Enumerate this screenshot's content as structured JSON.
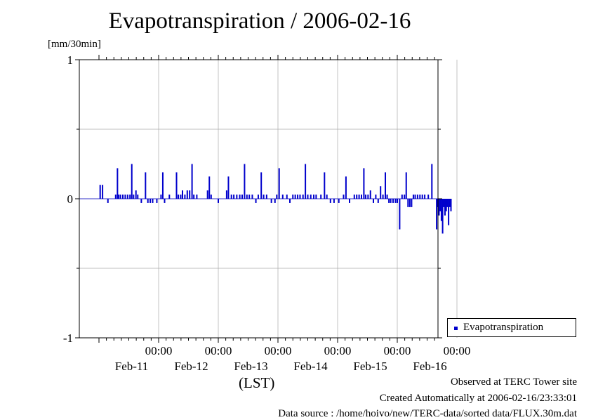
{
  "header": {
    "title": "Evapotranspiration / 2006-02-16",
    "unit": "[mm/30min]"
  },
  "legend": {
    "label": "Evapotranspiration",
    "color": "#0000cc"
  },
  "xaxis_label": "(LST)",
  "footer": {
    "observed": "Observed at TERC Tower site",
    "created": "Created Automatically at 2006-02-16/23:33:01",
    "source": "Data source : /home/hoivo/new/TERC-data/sorted  data/FLUX.30m.dat"
  },
  "chart_data": {
    "type": "bar",
    "ylim": [
      -1,
      1
    ],
    "yticks": [
      "1",
      "0",
      "-1"
    ],
    "xlim_days": [
      0,
      6.0
    ],
    "day_ticks": [
      {
        "time": "00:00",
        "date": "Feb-11"
      },
      {
        "time": "00:00",
        "date": "Feb-12"
      },
      {
        "time": "00:00",
        "date": "Feb-13"
      },
      {
        "time": "00:00",
        "date": "Feb-14"
      },
      {
        "time": "00:00",
        "date": "Feb-15"
      },
      {
        "time": "00:00",
        "date": "Feb-16"
      }
    ],
    "grid": true,
    "legend_position": "right",
    "series": [
      {
        "name": "Evapotranspiration",
        "color": "#0000cc",
        "points": [
          [
            0.02,
            0.1
          ],
          [
            0.06,
            0.1
          ],
          [
            0.15,
            -0.03
          ],
          [
            0.28,
            0.03
          ],
          [
            0.31,
            0.22
          ],
          [
            0.33,
            0.03
          ],
          [
            0.36,
            0.03
          ],
          [
            0.4,
            0.03
          ],
          [
            0.44,
            0.03
          ],
          [
            0.48,
            0.03
          ],
          [
            0.52,
            0.03
          ],
          [
            0.55,
            0.25
          ],
          [
            0.58,
            0.03
          ],
          [
            0.62,
            0.06
          ],
          [
            0.65,
            0.03
          ],
          [
            0.71,
            -0.03
          ],
          [
            0.78,
            0.19
          ],
          [
            0.82,
            -0.03
          ],
          [
            0.86,
            -0.03
          ],
          [
            0.9,
            -0.03
          ],
          [
            0.97,
            -0.03
          ],
          [
            1.04,
            0.03
          ],
          [
            1.07,
            0.19
          ],
          [
            1.1,
            -0.03
          ],
          [
            1.18,
            0.03
          ],
          [
            1.3,
            0.19
          ],
          [
            1.33,
            0.03
          ],
          [
            1.37,
            0.03
          ],
          [
            1.4,
            0.06
          ],
          [
            1.44,
            0.03
          ],
          [
            1.48,
            0.06
          ],
          [
            1.52,
            0.06
          ],
          [
            1.56,
            0.25
          ],
          [
            1.59,
            0.03
          ],
          [
            1.64,
            0.03
          ],
          [
            1.82,
            0.06
          ],
          [
            1.85,
            0.16
          ],
          [
            1.88,
            0.03
          ],
          [
            2.0,
            -0.03
          ],
          [
            2.14,
            0.06
          ],
          [
            2.17,
            0.16
          ],
          [
            2.22,
            0.03
          ],
          [
            2.26,
            0.03
          ],
          [
            2.31,
            0.03
          ],
          [
            2.36,
            0.03
          ],
          [
            2.4,
            0.03
          ],
          [
            2.44,
            0.25
          ],
          [
            2.48,
            0.03
          ],
          [
            2.52,
            0.03
          ],
          [
            2.57,
            0.03
          ],
          [
            2.63,
            -0.03
          ],
          [
            2.67,
            0.03
          ],
          [
            2.72,
            0.19
          ],
          [
            2.76,
            0.03
          ],
          [
            2.81,
            0.03
          ],
          [
            2.89,
            -0.03
          ],
          [
            2.95,
            -0.03
          ],
          [
            2.98,
            0.03
          ],
          [
            3.02,
            0.22
          ],
          [
            3.08,
            0.03
          ],
          [
            3.15,
            0.03
          ],
          [
            3.2,
            -0.03
          ],
          [
            3.25,
            0.03
          ],
          [
            3.29,
            0.03
          ],
          [
            3.33,
            0.03
          ],
          [
            3.37,
            0.03
          ],
          [
            3.42,
            0.03
          ],
          [
            3.46,
            0.25
          ],
          [
            3.5,
            0.03
          ],
          [
            3.55,
            0.03
          ],
          [
            3.6,
            0.03
          ],
          [
            3.64,
            0.03
          ],
          [
            3.72,
            0.03
          ],
          [
            3.78,
            0.19
          ],
          [
            3.82,
            0.03
          ],
          [
            3.88,
            -0.03
          ],
          [
            3.94,
            -0.03
          ],
          [
            4.02,
            -0.03
          ],
          [
            4.1,
            0.03
          ],
          [
            4.14,
            0.16
          ],
          [
            4.2,
            -0.03
          ],
          [
            4.28,
            0.03
          ],
          [
            4.32,
            0.03
          ],
          [
            4.36,
            0.03
          ],
          [
            4.4,
            0.03
          ],
          [
            4.44,
            0.22
          ],
          [
            4.47,
            0.03
          ],
          [
            4.51,
            0.03
          ],
          [
            4.55,
            0.06
          ],
          [
            4.6,
            -0.03
          ],
          [
            4.64,
            0.03
          ],
          [
            4.68,
            -0.03
          ],
          [
            4.72,
            0.09
          ],
          [
            4.76,
            0.03
          ],
          [
            4.8,
            0.19
          ],
          [
            4.83,
            0.03
          ],
          [
            4.86,
            -0.03
          ],
          [
            4.89,
            -0.03
          ],
          [
            4.93,
            -0.03
          ],
          [
            4.97,
            -0.03
          ],
          [
            5.0,
            -0.03
          ],
          [
            5.04,
            -0.22
          ],
          [
            5.08,
            0.03
          ],
          [
            5.12,
            0.03
          ],
          [
            5.15,
            0.19
          ],
          [
            5.18,
            -0.06
          ],
          [
            5.21,
            -0.06
          ],
          [
            5.24,
            -0.06
          ],
          [
            5.27,
            0.03
          ],
          [
            5.3,
            0.03
          ],
          [
            5.34,
            0.03
          ],
          [
            5.38,
            0.03
          ],
          [
            5.42,
            0.03
          ],
          [
            5.46,
            0.03
          ],
          [
            5.52,
            0.03
          ],
          [
            5.58,
            0.25
          ],
          [
            5.66,
            -0.22
          ],
          [
            5.68,
            -0.06
          ],
          [
            5.7,
            -0.12
          ],
          [
            5.72,
            -0.09
          ],
          [
            5.74,
            -0.16
          ],
          [
            5.76,
            -0.25
          ],
          [
            5.78,
            -0.06
          ],
          [
            5.8,
            -0.12
          ],
          [
            5.82,
            -0.09
          ],
          [
            5.84,
            -0.06
          ],
          [
            5.86,
            -0.19
          ],
          [
            5.88,
            -0.06
          ],
          [
            5.9,
            -0.09
          ]
        ]
      }
    ]
  }
}
